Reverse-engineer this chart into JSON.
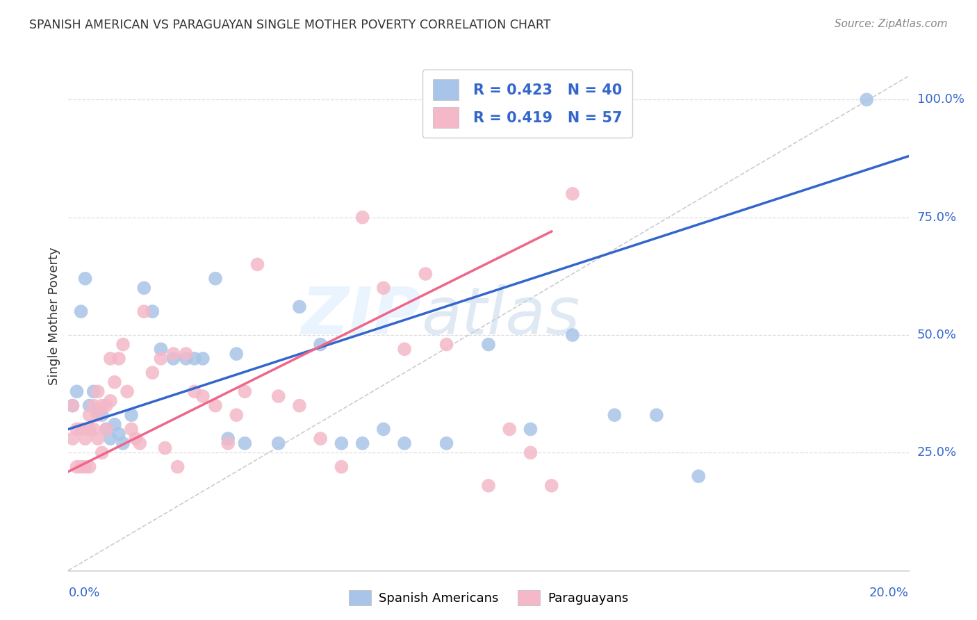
{
  "title": "SPANISH AMERICAN VS PARAGUAYAN SINGLE MOTHER POVERTY CORRELATION CHART",
  "source": "Source: ZipAtlas.com",
  "ylabel": "Single Mother Poverty",
  "right_yticks": [
    "100.0%",
    "75.0%",
    "50.0%",
    "25.0%"
  ],
  "right_ytick_vals": [
    1.0,
    0.75,
    0.5,
    0.25
  ],
  "legend_blue_r": "R = 0.423",
  "legend_blue_n": "N = 40",
  "legend_pink_r": "R = 0.419",
  "legend_pink_n": "N = 57",
  "blue_scatter_color": "#A8C4E8",
  "pink_scatter_color": "#F4B8C8",
  "blue_line_color": "#3366CC",
  "pink_line_color": "#EE6688",
  "diagonal_color": "#CCCCCC",
  "watermark_zip": "ZIP",
  "watermark_atlas": "atlas",
  "background_color": "#FFFFFF",
  "xlim": [
    0.0,
    0.2
  ],
  "ylim": [
    0.0,
    1.08
  ],
  "blue_regression_x0": 0.0,
  "blue_regression_y0": 0.3,
  "blue_regression_x1": 0.2,
  "blue_regression_y1": 0.88,
  "pink_regression_x0": 0.0,
  "pink_regression_y0": 0.21,
  "pink_regression_x1": 0.115,
  "pink_regression_y1": 0.72,
  "blue_points_x": [
    0.001,
    0.002,
    0.003,
    0.004,
    0.005,
    0.006,
    0.007,
    0.008,
    0.009,
    0.01,
    0.011,
    0.012,
    0.013,
    0.015,
    0.018,
    0.02,
    0.022,
    0.025,
    0.028,
    0.03,
    0.032,
    0.035,
    0.038,
    0.04,
    0.042,
    0.05,
    0.055,
    0.06,
    0.065,
    0.07,
    0.075,
    0.08,
    0.09,
    0.1,
    0.11,
    0.12,
    0.13,
    0.14,
    0.15,
    0.19
  ],
  "blue_points_y": [
    0.35,
    0.38,
    0.55,
    0.62,
    0.35,
    0.38,
    0.34,
    0.33,
    0.3,
    0.28,
    0.31,
    0.29,
    0.27,
    0.33,
    0.6,
    0.55,
    0.47,
    0.45,
    0.45,
    0.45,
    0.45,
    0.62,
    0.28,
    0.46,
    0.27,
    0.27,
    0.56,
    0.48,
    0.27,
    0.27,
    0.3,
    0.27,
    0.27,
    0.48,
    0.3,
    0.5,
    0.33,
    0.33,
    0.2,
    1.0
  ],
  "pink_points_x": [
    0.001,
    0.001,
    0.002,
    0.002,
    0.003,
    0.003,
    0.004,
    0.004,
    0.005,
    0.005,
    0.005,
    0.006,
    0.006,
    0.007,
    0.007,
    0.007,
    0.008,
    0.008,
    0.009,
    0.009,
    0.01,
    0.01,
    0.011,
    0.012,
    0.013,
    0.014,
    0.015,
    0.016,
    0.017,
    0.018,
    0.02,
    0.022,
    0.023,
    0.025,
    0.026,
    0.028,
    0.03,
    0.032,
    0.035,
    0.038,
    0.04,
    0.042,
    0.045,
    0.05,
    0.055,
    0.06,
    0.065,
    0.07,
    0.075,
    0.08,
    0.085,
    0.09,
    0.1,
    0.105,
    0.11,
    0.115,
    0.12
  ],
  "pink_points_y": [
    0.35,
    0.28,
    0.22,
    0.3,
    0.22,
    0.3,
    0.22,
    0.28,
    0.33,
    0.3,
    0.22,
    0.35,
    0.3,
    0.33,
    0.38,
    0.28,
    0.35,
    0.25,
    0.35,
    0.3,
    0.36,
    0.45,
    0.4,
    0.45,
    0.48,
    0.38,
    0.3,
    0.28,
    0.27,
    0.55,
    0.42,
    0.45,
    0.26,
    0.46,
    0.22,
    0.46,
    0.38,
    0.37,
    0.35,
    0.27,
    0.33,
    0.38,
    0.65,
    0.37,
    0.35,
    0.28,
    0.22,
    0.75,
    0.6,
    0.47,
    0.63,
    0.48,
    0.18,
    0.3,
    0.25,
    0.18,
    0.8
  ]
}
